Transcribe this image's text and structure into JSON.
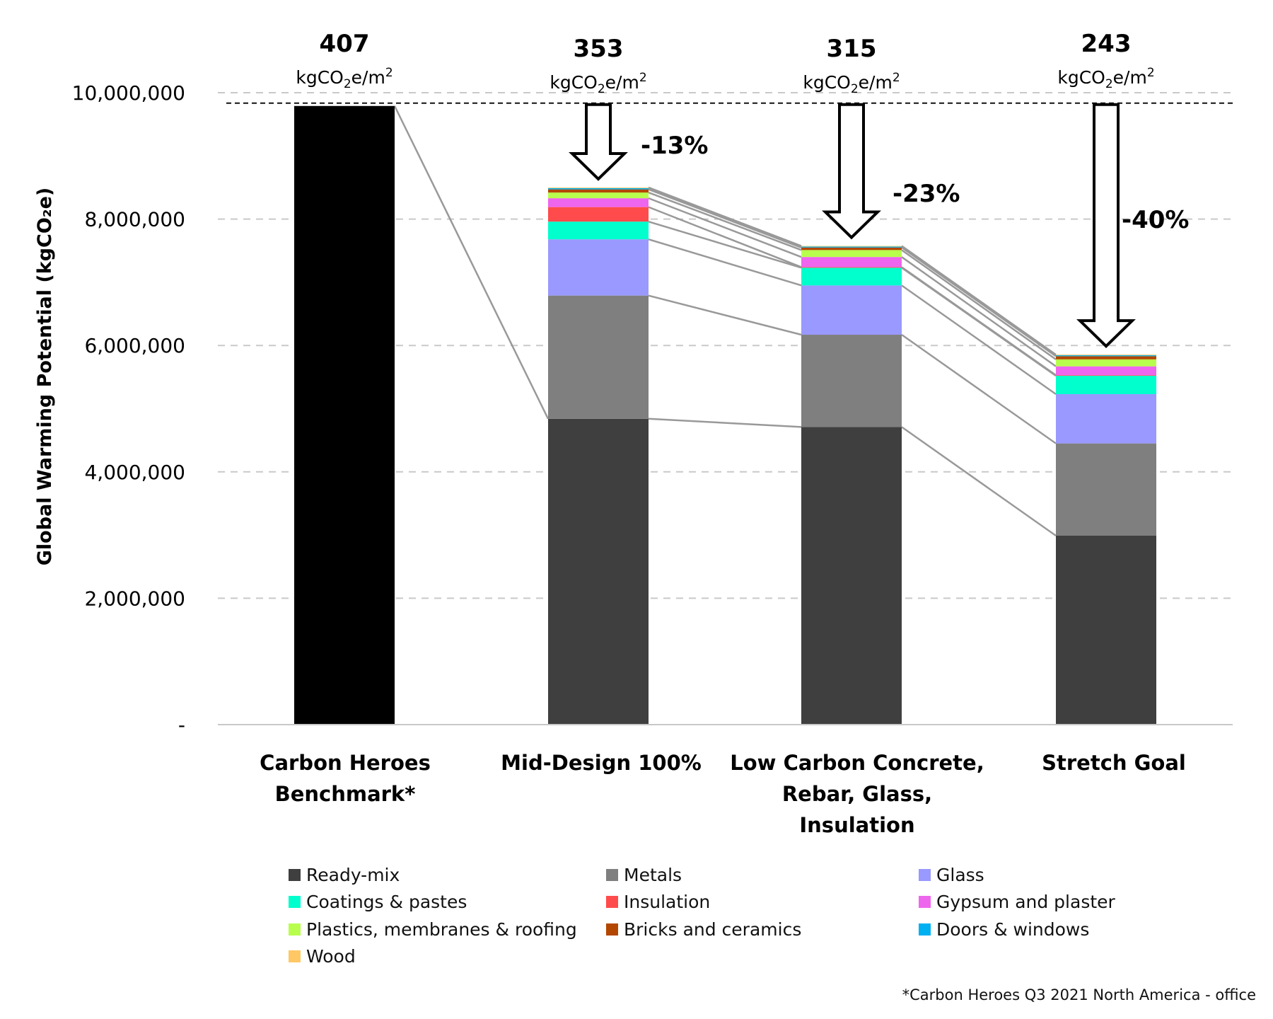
{
  "chart_data": {
    "type": "bar",
    "stacked": true,
    "title": "",
    "xlabel": "",
    "ylabel": "Global Warming Potential (kgCO₂e)",
    "ylim": [
      0,
      10000000
    ],
    "yticks": [
      0,
      2000000,
      4000000,
      6000000,
      8000000,
      10000000
    ],
    "ytick_labels": [
      "-",
      "2,000,000",
      "4,000,000",
      "6,000,000",
      "8,000,000",
      "10,000,000"
    ],
    "grid": "horizontal dashed",
    "legend_position": "bottom",
    "categories": [
      {
        "lines": [
          "Carbon Heroes",
          "Benchmark*"
        ]
      },
      {
        "lines": [
          "Mid-Design 100%"
        ]
      },
      {
        "lines": [
          "Low Carbon Concrete,",
          "Rebar, Glass,",
          "Insulation"
        ]
      },
      {
        "lines": [
          "Stretch Goal"
        ]
      }
    ],
    "benchmark": {
      "name": "Carbon Heroes Benchmark",
      "value": 9790000,
      "color": "#000000"
    },
    "series": [
      {
        "name": "Ready-mix",
        "color": "#3f3f3f",
        "values": [
          null,
          4840000,
          4710000,
          2990000
        ]
      },
      {
        "name": "Metals",
        "color": "#7f7f7f",
        "values": [
          null,
          1950000,
          1460000,
          1460000
        ]
      },
      {
        "name": "Glass",
        "color": "#9999ff",
        "values": [
          null,
          890000,
          780000,
          780000
        ]
      },
      {
        "name": "Coatings & pastes",
        "color": "#00ffcc",
        "values": [
          null,
          280000,
          280000,
          290000
        ]
      },
      {
        "name": "Insulation",
        "color": "#ff4b4b",
        "values": [
          null,
          230000,
          10000,
          10000
        ]
      },
      {
        "name": "Gypsum and plaster",
        "color": "#ee66ee",
        "values": [
          null,
          140000,
          160000,
          140000
        ]
      },
      {
        "name": "Plastics, membranes & roofing",
        "color": "#b8ff4d",
        "values": [
          null,
          90000,
          110000,
          110000
        ]
      },
      {
        "name": "Bricks and ceramics",
        "color": "#b34700",
        "values": [
          null,
          50000,
          40000,
          50000
        ]
      },
      {
        "name": "Doors & windows",
        "color": "#00b0f0",
        "values": [
          null,
          20000,
          15000,
          15000
        ]
      },
      {
        "name": "Wood",
        "color": "#ffc864",
        "values": [
          null,
          10000,
          10000,
          10000
        ]
      }
    ],
    "annotations": {
      "totals": [
        {
          "value": "407",
          "unit_main": "kgCO",
          "unit_sub": "2",
          "unit_tail": "e/m",
          "unit_sup": "2"
        },
        {
          "value": "353",
          "unit_main": "kgCO",
          "unit_sub": "2",
          "unit_tail": "e/m",
          "unit_sup": "2"
        },
        {
          "value": "315",
          "unit_main": "kgCO",
          "unit_sub": "2",
          "unit_tail": "e/m",
          "unit_sup": "2"
        },
        {
          "value": "243",
          "unit_main": "kgCO",
          "unit_sub": "2",
          "unit_tail": "e/m",
          "unit_sup": "2"
        }
      ],
      "reductions": [
        null,
        "-13%",
        "-23%",
        "-40%"
      ],
      "benchmark_reference_line": 9790000
    }
  },
  "legend": {
    "items": [
      {
        "label": "Ready-mix",
        "color": "#3f3f3f"
      },
      {
        "label": "Metals",
        "color": "#7f7f7f"
      },
      {
        "label": "Glass",
        "color": "#9999ff"
      },
      {
        "label": "Coatings & pastes",
        "color": "#00ffcc"
      },
      {
        "label": "Insulation",
        "color": "#ff4b4b"
      },
      {
        "label": "Gypsum and plaster",
        "color": "#ee66ee"
      },
      {
        "label": "Plastics, membranes & roofing",
        "color": "#b8ff4d"
      },
      {
        "label": "Bricks and ceramics",
        "color": "#b34700"
      },
      {
        "label": "Doors & windows",
        "color": "#00b0f0"
      },
      {
        "label": "Wood",
        "color": "#ffc864"
      }
    ]
  },
  "footnote": "*Carbon Heroes Q3 2021 North America - office"
}
